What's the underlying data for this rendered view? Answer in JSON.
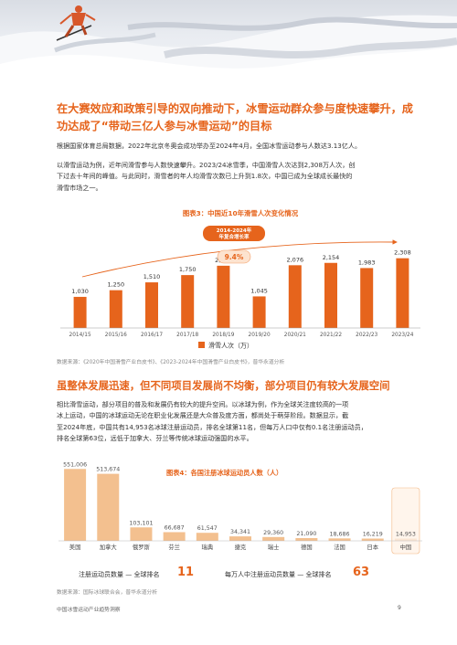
{
  "hero": {
    "alt": "skier banner"
  },
  "headline": {
    "line1": "在大赛效应和政策引导的双向推动下，冰雪运动群众参与度快速攀升，成",
    "line2": "功达成了“带动三亿人参与冰雪运动”的目标"
  },
  "para1": "根据国家体育总局数据，2022年北京冬奥会成功举办至2024年4月，全国冰雪运动参与人数达3.13亿人。",
  "para2": {
    "line1": "以滑雪运动为例，近年间滑雪参与人数快速攀升。2023/24冰雪季，中国滑雪人次达到2,308万人次，创",
    "line2": "下过去十年间的峰值。与此同时，滑雪者的年人均滑雪次数已上升到1.8次，中国已成为全球成长最快的",
    "line3": "滑雪市场之一。"
  },
  "chart1": {
    "title": "图表3：中国近10年滑雪人次变化情况",
    "cagr_label_line1": "2014-2024年",
    "cagr_label_line2": "年复合增长率",
    "cagr_value": "9.4%",
    "legend": "滑雪人次（万）",
    "source": "数据来源：《2020年中国滑雪产业白皮书》、《2023-2024年中国滑雪产业白皮书》，普华永道分析"
  },
  "chart_data": [
    {
      "type": "bar",
      "title": "图表3：中国近10年滑雪人次变化情况",
      "categories": [
        "2014/15",
        "2015/16",
        "2016/17",
        "2017/18",
        "2018/19",
        "2019/20",
        "2020/21",
        "2021/22",
        "2022/23",
        "2023/24"
      ],
      "series": [
        {
          "name": "滑雪人次（万）",
          "values": [
            1030,
            1250,
            1510,
            1750,
            2060,
            1045,
            2076,
            2154,
            1983,
            2308
          ],
          "labels": [
            "1,030",
            "1,250",
            "1,510",
            "1,750",
            "2,060",
            "1,045",
            "2,076",
            "2,154",
            "1,983",
            "2,308"
          ]
        }
      ],
      "ylim": [
        0,
        2600
      ],
      "bar_color": "#e6641c",
      "grid": false
    },
    {
      "type": "bar",
      "title": "图表4：各国注册冰球运动员人数（人）",
      "categories": [
        "美国",
        "加拿大",
        "俄罗斯",
        "芬兰",
        "瑞典",
        "捷克",
        "瑞士",
        "德国",
        "法国",
        "日本",
        "中国"
      ],
      "series": [
        {
          "values": [
            551006,
            513674,
            103101,
            66687,
            61547,
            34341,
            29360,
            21090,
            18686,
            16219,
            14953
          ],
          "labels": [
            "551,006",
            "513,674",
            "103,101",
            "66,687",
            "61,547",
            "34,341",
            "29,360",
            "21,090",
            "18,686",
            "16,219",
            "14,953"
          ]
        }
      ],
      "ylim": [
        0,
        560000
      ],
      "bar_color": "#f3c08f",
      "highlight_color": "#fbe6d3",
      "highlight_category": "中国",
      "grid": false
    }
  ],
  "section2": {
    "heading": "虽整体发展迅速，但不同项目发展尚不均衡，部分项目仍有较大发展空间",
    "line1": "相比滑雪运动，部分项目的普及和发展仍有较大的提升空间。以冰球为例，作为全球关注度较高的一项",
    "line2": "冰上运动，中国的冰球运动无论在职业化发展还是大众普及度方面，都尚处于萌芽阶段。数据显示，截",
    "line3": "至2024年底，中国共有14,953名冰球注册运动员，排名全球第11名，但每万人口中仅有0.1名注册运动员，",
    "line4": "排名全球第63位，远低于加拿大、芬兰等传统冰球运动强国的水平。"
  },
  "chart2": {
    "title": "图表4：各国注册冰球运动员人数（人）",
    "stat1_label": "注册运动员数量 — 全球排名",
    "stat1_value": "11",
    "stat2_label": "每万人中注册运动员数量 — 全球排名",
    "stat2_value": "63",
    "source": "数据来源：国际冰球联合会，普华永道分析"
  },
  "footer": {
    "left": "中国冰雪运动产业趋势洞察",
    "page": "9"
  }
}
